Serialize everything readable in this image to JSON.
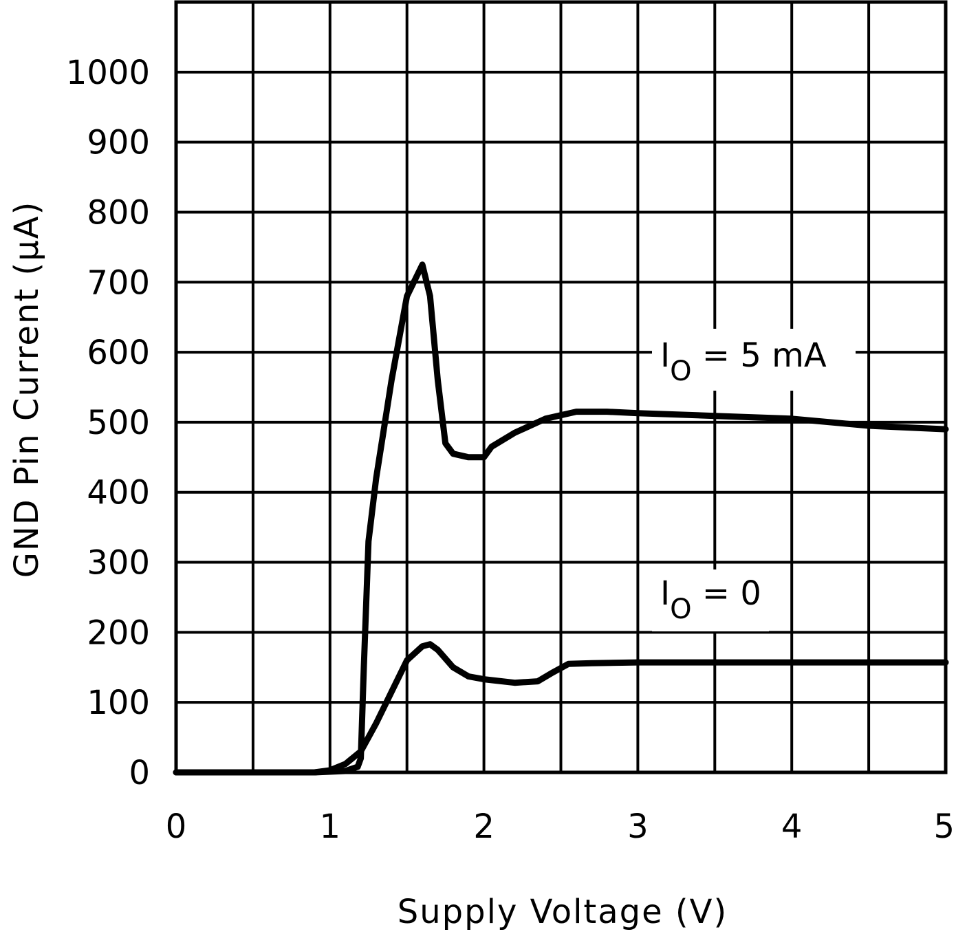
{
  "chart_data": {
    "type": "line",
    "title": "",
    "xlabel": "Supply Voltage (V)",
    "ylabel": "GND Pin Current (μA)",
    "xlim": [
      0,
      5
    ],
    "ylim": [
      0,
      1100
    ],
    "x_ticks": [
      "0",
      "1",
      "2",
      "3",
      "4",
      "5"
    ],
    "y_ticks": [
      "0",
      "100",
      "200",
      "300",
      "400",
      "500",
      "600",
      "700",
      "800",
      "900",
      "1000"
    ],
    "grid": true,
    "series": [
      {
        "name": "IO = 5 mA",
        "label_main": "I",
        "label_sub": "O",
        "label_rest": " = 5 mA",
        "points": [
          [
            0,
            0
          ],
          [
            0.9,
            0
          ],
          [
            1.1,
            2
          ],
          [
            1.18,
            8
          ],
          [
            1.2,
            20
          ],
          [
            1.22,
            150
          ],
          [
            1.25,
            330
          ],
          [
            1.3,
            420
          ],
          [
            1.4,
            560
          ],
          [
            1.5,
            680
          ],
          [
            1.6,
            725
          ],
          [
            1.65,
            680
          ],
          [
            1.7,
            560
          ],
          [
            1.75,
            470
          ],
          [
            1.8,
            455
          ],
          [
            1.9,
            450
          ],
          [
            2.0,
            450
          ],
          [
            2.05,
            465
          ],
          [
            2.2,
            485
          ],
          [
            2.4,
            505
          ],
          [
            2.6,
            515
          ],
          [
            2.8,
            515
          ],
          [
            3.0,
            513
          ],
          [
            3.5,
            509
          ],
          [
            4.0,
            505
          ],
          [
            4.5,
            495
          ],
          [
            5.0,
            490
          ]
        ]
      },
      {
        "name": "IO = 0",
        "label_main": "I",
        "label_sub": "O",
        "label_rest": " = 0",
        "points": [
          [
            0,
            0
          ],
          [
            0.9,
            0
          ],
          [
            1.0,
            3
          ],
          [
            1.1,
            12
          ],
          [
            1.2,
            30
          ],
          [
            1.3,
            70
          ],
          [
            1.4,
            115
          ],
          [
            1.5,
            160
          ],
          [
            1.6,
            180
          ],
          [
            1.65,
            183
          ],
          [
            1.7,
            175
          ],
          [
            1.8,
            150
          ],
          [
            1.9,
            137
          ],
          [
            2.0,
            133
          ],
          [
            2.2,
            128
          ],
          [
            2.35,
            130
          ],
          [
            2.45,
            143
          ],
          [
            2.55,
            155
          ],
          [
            2.7,
            156
          ],
          [
            3.0,
            157
          ],
          [
            4.0,
            157
          ],
          [
            5.0,
            157
          ]
        ]
      }
    ]
  }
}
